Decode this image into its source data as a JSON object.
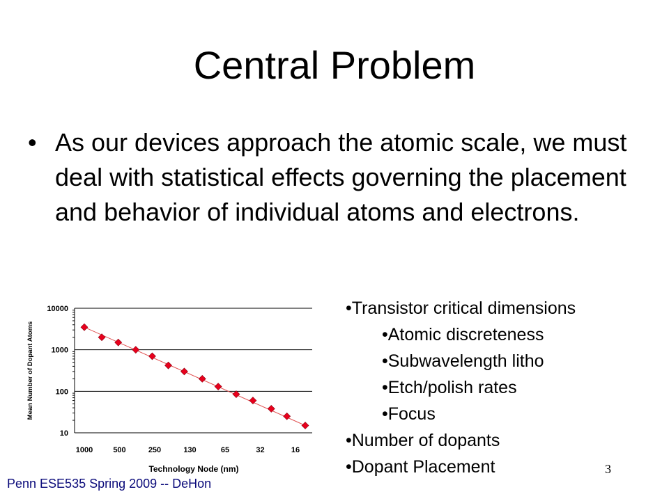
{
  "slide": {
    "title": "Central Problem",
    "bullet": "As our devices approach the atomic scale, we must deal with statistical effects governing the placement and behavior of individual atoms and electrons.",
    "bullet_marker": "•"
  },
  "right_list": [
    {
      "text": "•Transistor critical dimensions",
      "level": 0
    },
    {
      "text": "•Atomic discreteness",
      "level": 1
    },
    {
      "text": "•Subwavelength  litho",
      "level": 1
    },
    {
      "text": "•Etch/polish rates",
      "level": 1
    },
    {
      "text": "•Focus",
      "level": 1
    },
    {
      "text": "•Number of dopants",
      "level": 0
    },
    {
      "text": "•Dopant Placement",
      "level": 0
    }
  ],
  "footer": "Penn ESE535 Spring 2009 -- DeHon",
  "page_number": "3",
  "colors": {
    "marker": "#e8001c",
    "trend_line": "#e05050",
    "footer": "#0a0a7a"
  },
  "chart_data": {
    "type": "scatter",
    "xlabel": "Technology Node (nm)",
    "ylabel": "Mean Number of Dopant Atoms",
    "x_tick_labels": [
      "1000",
      "500",
      "250",
      "130",
      "65",
      "32",
      "16"
    ],
    "y_tick_labels": [
      "10",
      "100",
      "1000",
      "10000"
    ],
    "y_scale": "log",
    "ylim": [
      10,
      10000
    ],
    "grid": "horizontal",
    "trendline": true,
    "points": [
      {
        "x": 1000,
        "y": 3500
      },
      {
        "x": 700,
        "y": 2000
      },
      {
        "x": 500,
        "y": 1500
      },
      {
        "x": 350,
        "y": 1000
      },
      {
        "x": 250,
        "y": 700
      },
      {
        "x": 180,
        "y": 420
      },
      {
        "x": 130,
        "y": 300
      },
      {
        "x": 90,
        "y": 200
      },
      {
        "x": 65,
        "y": 130
      },
      {
        "x": 45,
        "y": 85
      },
      {
        "x": 32,
        "y": 60
      },
      {
        "x": 22,
        "y": 38
      },
      {
        "x": 16,
        "y": 25
      },
      {
        "x": 11,
        "y": 15
      }
    ]
  }
}
